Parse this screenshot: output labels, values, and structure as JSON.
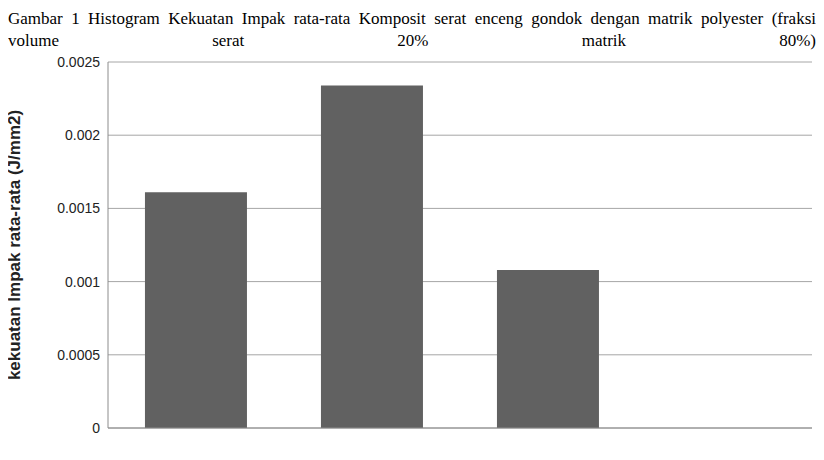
{
  "chart_data": {
    "type": "bar",
    "title": "Gambar 1 Histogram Kekuatan Impak rata-rata Komposit serat enceng gondok dengan matrik polyester (fraksi volume serat 20% matrik 80%)",
    "y_label": "kekuatan Impak rata-rata (J/mm2)",
    "categories": [
      null,
      null,
      null,
      null
    ],
    "values": [
      0.00161,
      0.00234,
      0.00108,
      null
    ],
    "color": "#616161",
    "ylim": [
      0,
      0.0025
    ],
    "yticks": [
      0,
      0.0005,
      0.001,
      0.0015,
      0.002,
      0.0025
    ],
    "grid": true,
    "tick_labels": "y"
  }
}
